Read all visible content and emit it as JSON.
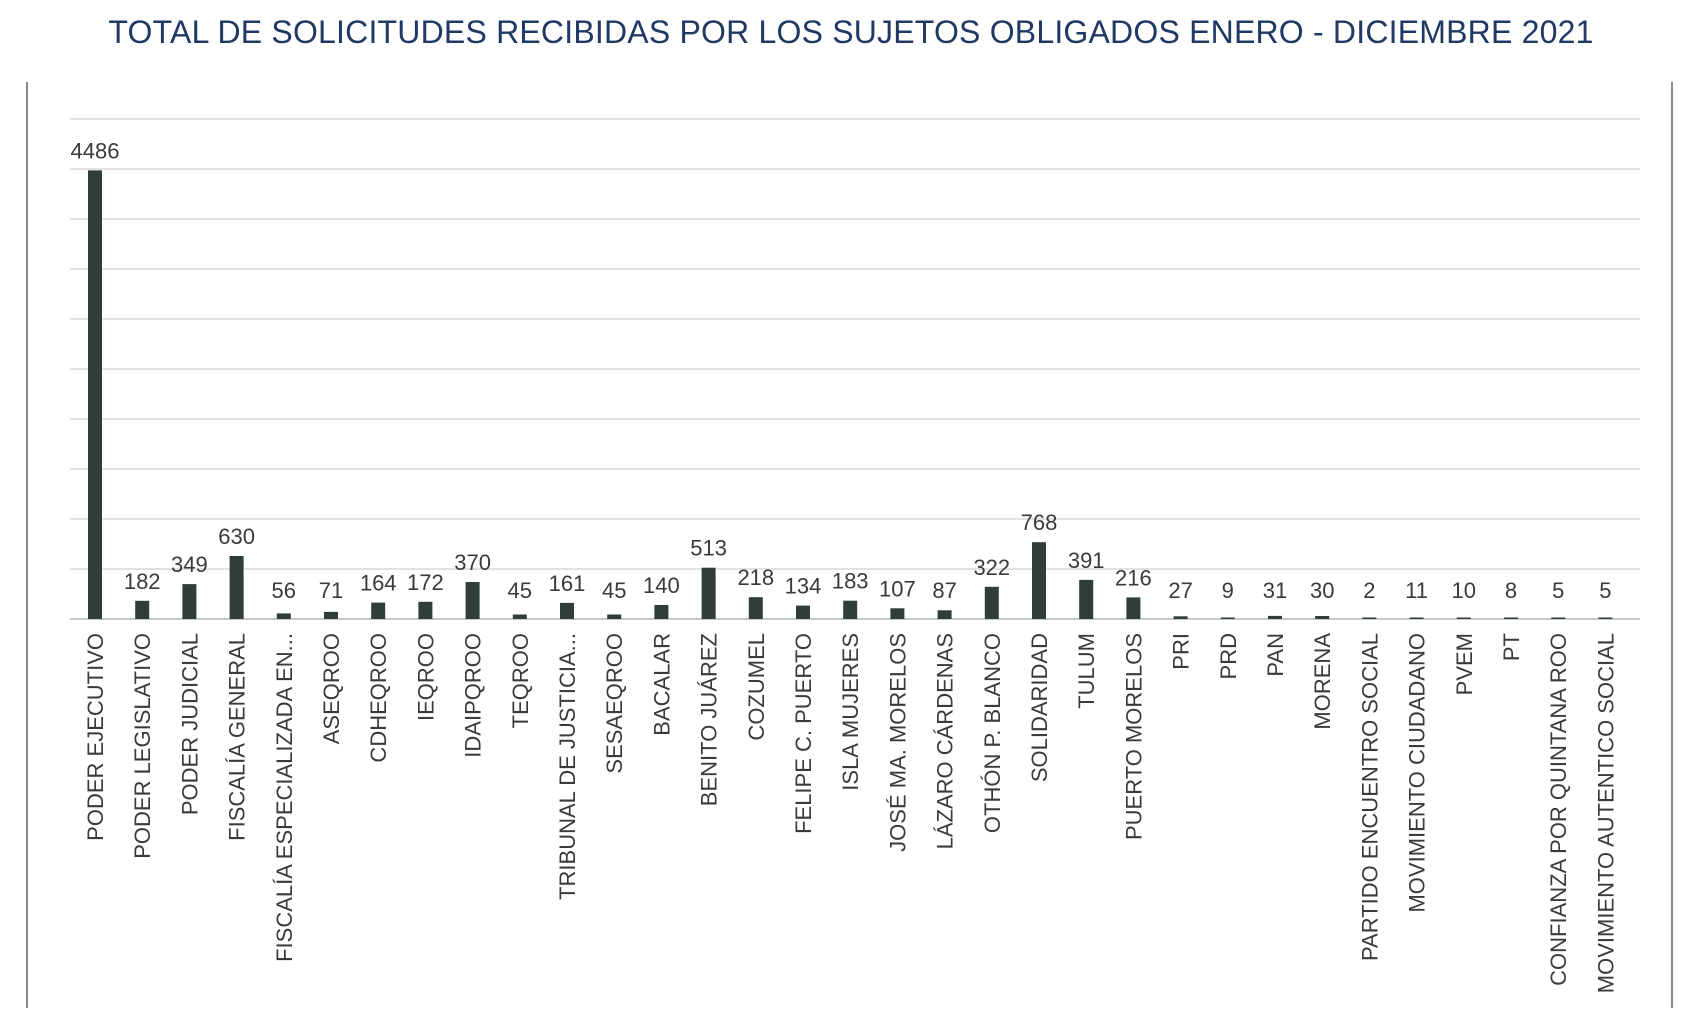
{
  "chart_data": {
    "type": "bar",
    "title": "TOTAL DE SOLICITUDES RECIBIDAS POR LOS SUJETOS OBLIGADOS ENERO - DICIEMBRE 2021",
    "xlabel": "",
    "ylabel": "",
    "ylim": [
      0,
      5000
    ],
    "grid": true,
    "legend": "none",
    "categories": [
      "PODER EJECUTIVO",
      "PODER LEGISLATIVO",
      "PODER JUDICIAL",
      "FISCALÍA GENERAL",
      "FISCALÍA ESPECIALIZADA EN...",
      "ASEQROO",
      "CDHEQROO",
      "IEQROO",
      "IDAIPQROO",
      "TEQROO",
      "TRIBUNAL DE JUSTICIA...",
      "SESAEQROO",
      "BACALAR",
      "BENITO JUÁREZ",
      "COZUMEL",
      "FELIPE C. PUERTO",
      "ISLA MUJERES",
      "JOSÉ MA. MORELOS",
      "LÁZARO CÁRDENAS",
      "OTHÓN P. BLANCO",
      "SOLIDARIDAD",
      "TULUM",
      "PUERTO MORELOS",
      "PRI",
      "PRD",
      "PAN",
      "MORENA",
      "PARTIDO ENCUENTRO SOCIAL",
      "MOVIMIENTO CIUDADANO",
      "PVEM",
      "PT",
      "CONFIANZA POR QUINTANA ROO",
      "MOVIMIENTO AUTENTICO SOCIAL"
    ],
    "values": [
      4486,
      182,
      349,
      630,
      56,
      71,
      164,
      172,
      370,
      45,
      161,
      45,
      140,
      513,
      218,
      134,
      183,
      107,
      87,
      322,
      768,
      391,
      216,
      27,
      9,
      31,
      30,
      2,
      11,
      10,
      8,
      5,
      5
    ],
    "bar_color": "#2f3d3b",
    "title_color": "#1f3864"
  }
}
